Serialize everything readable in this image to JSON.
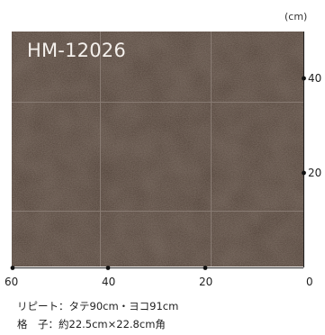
{
  "unit": "(cm)",
  "product_code": "HM-12026",
  "swatch_color": "#4a3b32",
  "grid_line_color": "#8a7c73",
  "x_ticks": [
    "60",
    "40",
    "20",
    "0"
  ],
  "y_ticks": [
    "40",
    "20"
  ],
  "info": {
    "repeat_label": "リピート",
    "repeat_value": "タテ90cm・ヨコ91cm",
    "grid_label": "格　子",
    "grid_value": "約22.5cm×22.8cm角"
  }
}
